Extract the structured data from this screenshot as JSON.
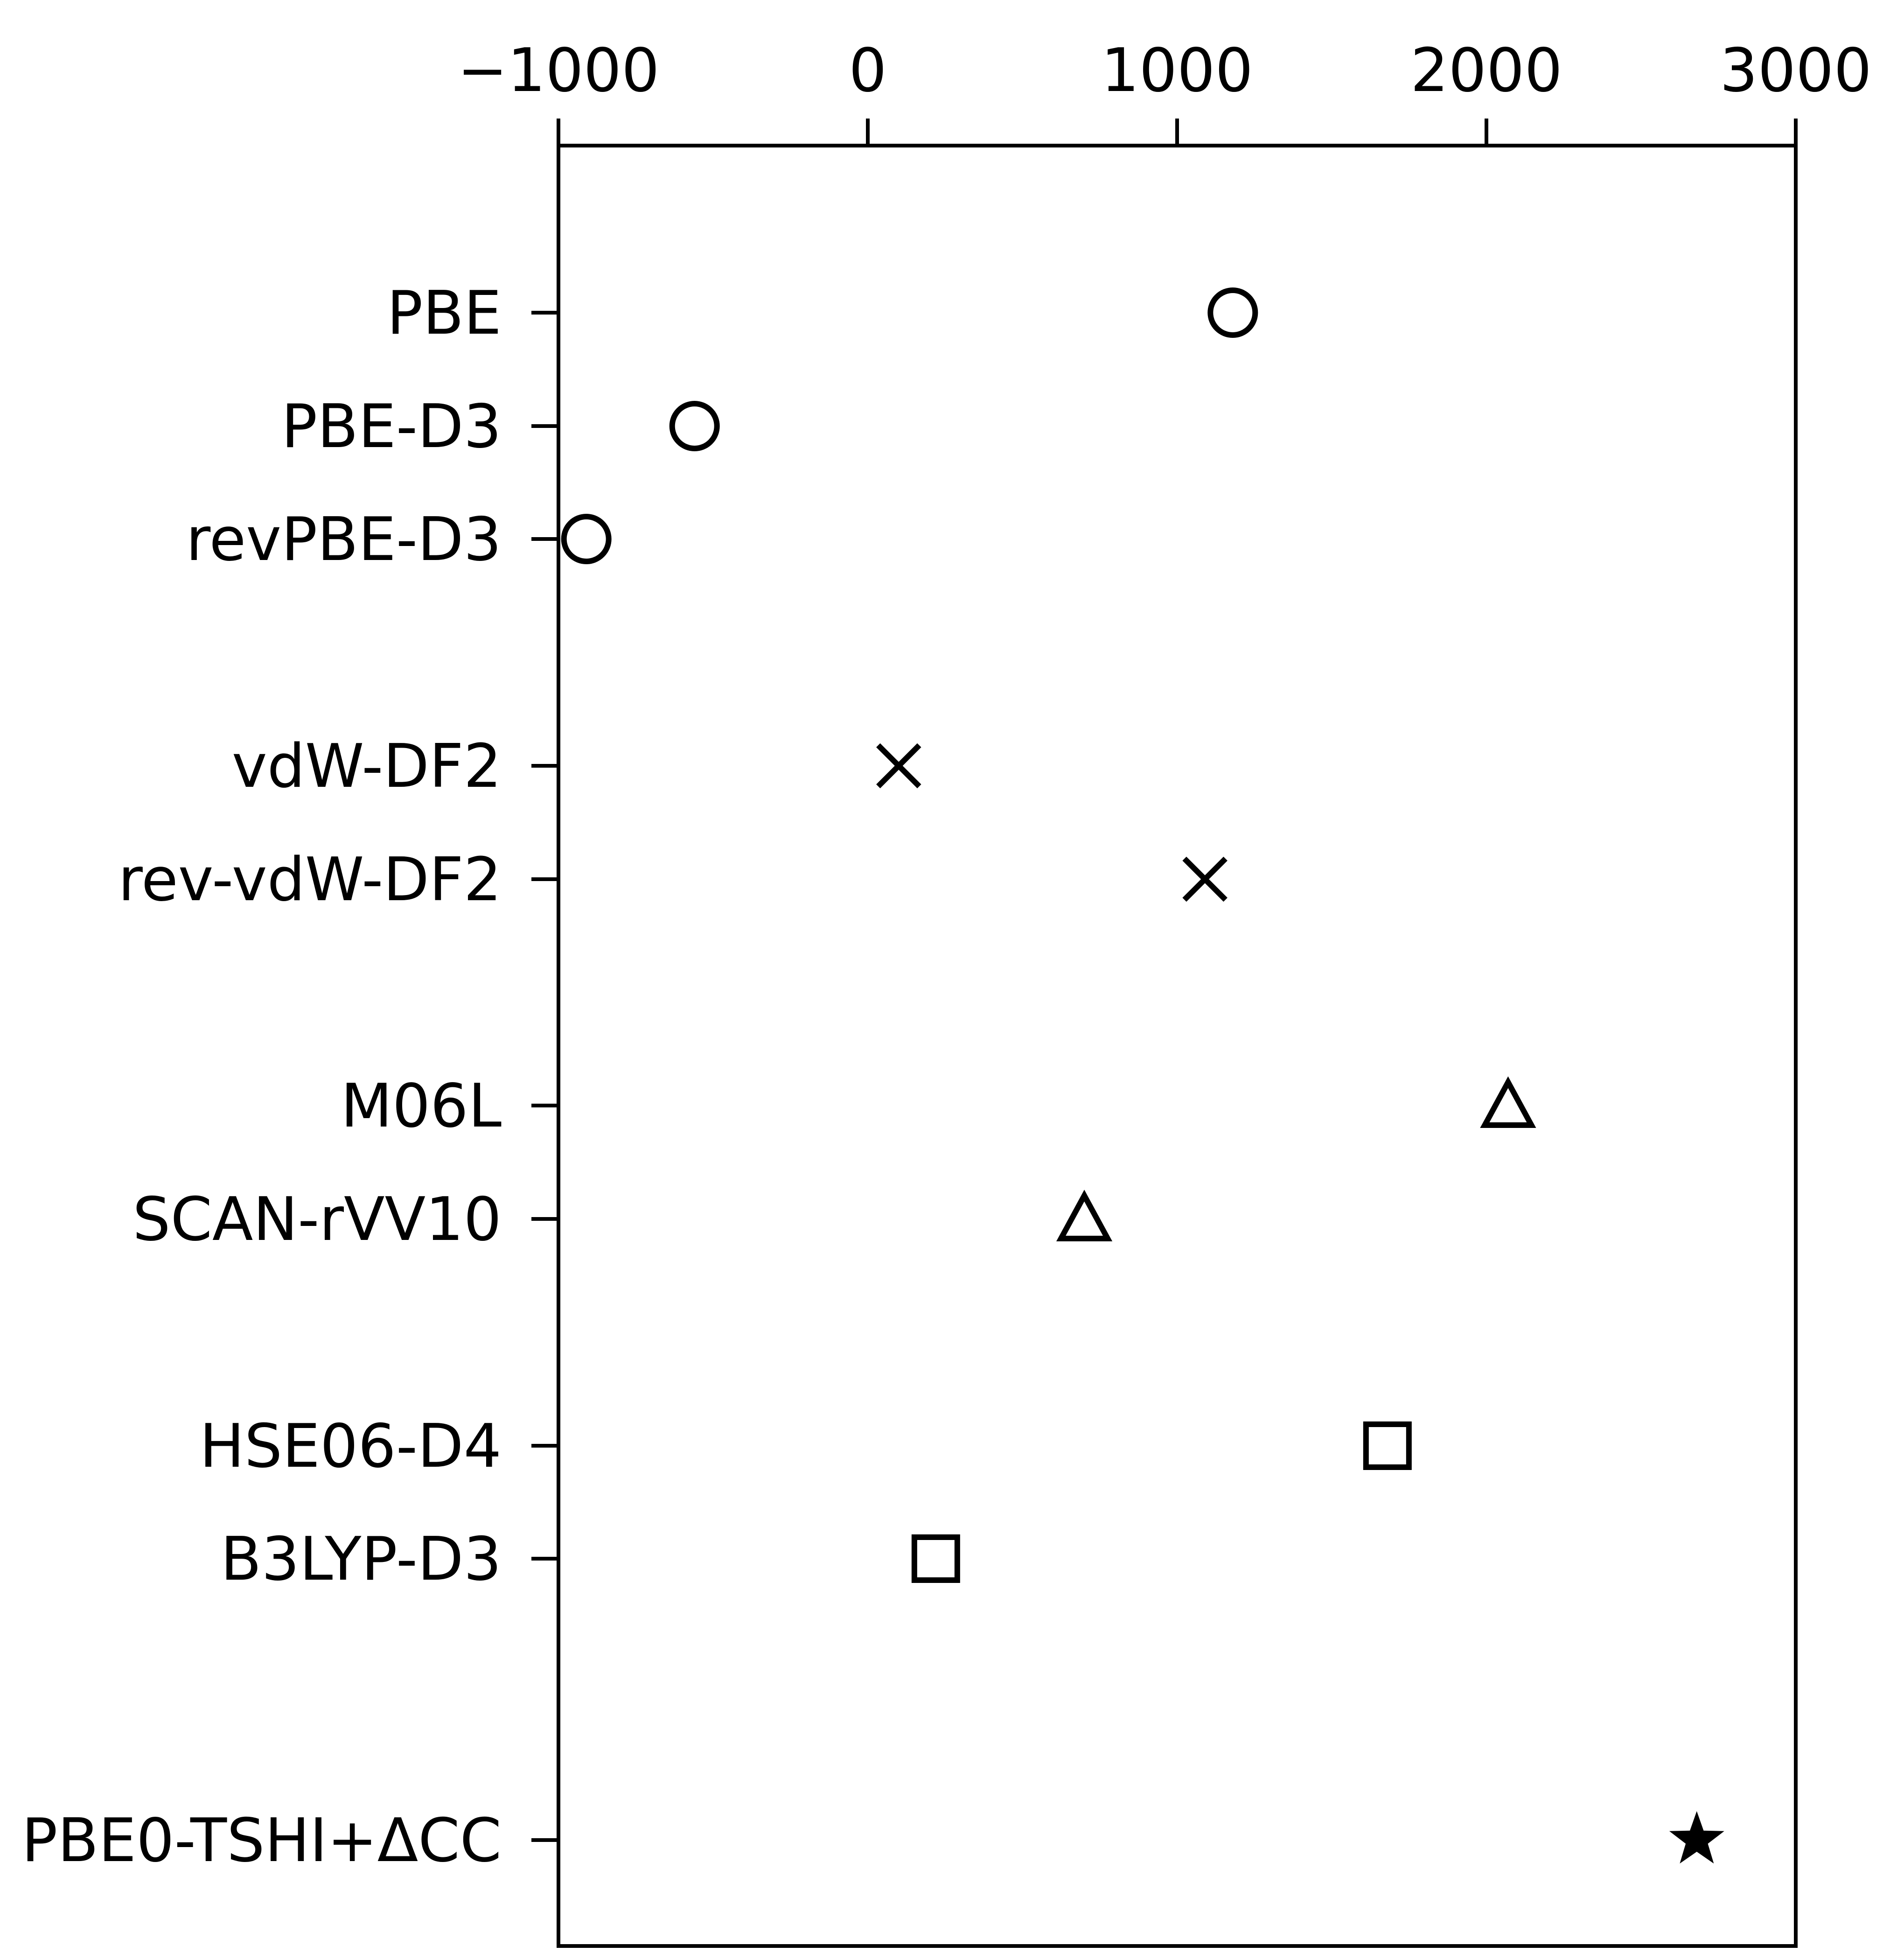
{
  "chart_data": {
    "type": "scatter",
    "orientation": "horizontal",
    "title": "",
    "xlabel": "",
    "ylabel": "",
    "x_axis_position": "top",
    "xlim": [
      -1000,
      3000
    ],
    "x_ticks": [
      -1000,
      0,
      1000,
      2000,
      3000
    ],
    "x_tick_labels": [
      "−1000",
      "0",
      "1000",
      "2000",
      "3000"
    ],
    "grid": false,
    "legend": "none",
    "marker_color": "#000000",
    "points": [
      {
        "label": "PBE",
        "value": 1180,
        "marker": "circle"
      },
      {
        "label": "PBE-D3",
        "value": -560,
        "marker": "circle"
      },
      {
        "label": "revPBE-D3",
        "value": -910,
        "marker": "circle"
      },
      {
        "label": "vdW-DF2",
        "value": 100,
        "marker": "x"
      },
      {
        "label": "rev-vdW-DF2",
        "value": 1090,
        "marker": "x"
      },
      {
        "label": "M06L",
        "value": 2070,
        "marker": "triangle"
      },
      {
        "label": "SCAN-rVV10",
        "value": 700,
        "marker": "triangle"
      },
      {
        "label": "HSE06-D4",
        "value": 1680,
        "marker": "square"
      },
      {
        "label": "B3LYP-D3",
        "value": 220,
        "marker": "square"
      },
      {
        "label": "PBE0-TSHI+ΔCC",
        "value": 2680,
        "marker": "star"
      }
    ]
  }
}
